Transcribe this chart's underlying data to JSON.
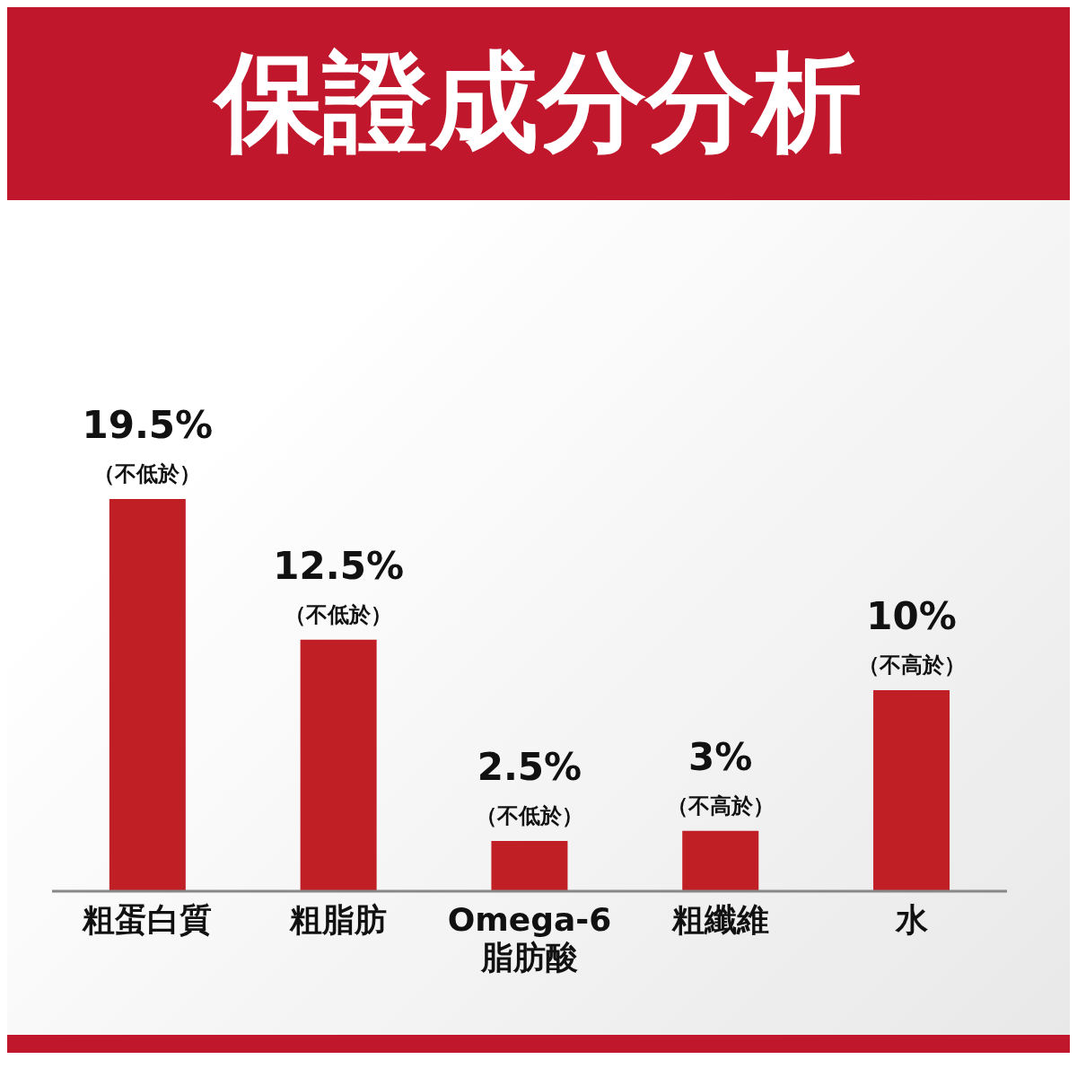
{
  "chart_data": {
    "type": "bar",
    "title": "保證成分分析",
    "categories": [
      "粗蛋白質",
      "粗脂肪",
      "Omega-6 脂肪酸",
      "粗纖維",
      "水"
    ],
    "values": [
      19.5,
      12.5,
      2.5,
      3,
      10
    ],
    "color": "#c01f26",
    "value_labels": [
      "19.5%\n（不低於）",
      "12.5%\n（不低於）",
      "2.5%\n（不低於）",
      "3%\n（不高於）",
      "10%\n（不高於）"
    ]
  }
}
